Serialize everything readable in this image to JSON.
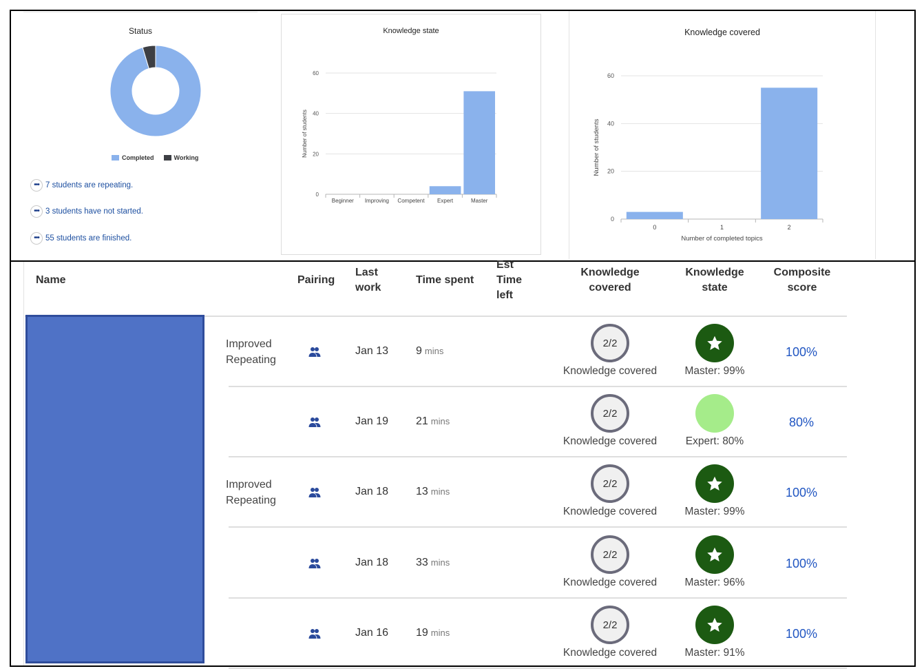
{
  "status": {
    "title": "Status",
    "chart_data": {
      "type": "pie",
      "title": "Status",
      "labels": [
        "Completed",
        "Working"
      ],
      "values": [
        62,
        3
      ],
      "colors": [
        "#8ab2ec",
        "#3d3f44"
      ],
      "legend_position": "bottom"
    },
    "legend": [
      {
        "label": "Completed",
        "color": "#8ab2ec"
      },
      {
        "label": "Working",
        "color": "#3d3f44"
      }
    ],
    "lines": [
      {
        "button": "•••",
        "text": "7 students are repeating."
      },
      {
        "button": "•••",
        "text": "3 students have not started."
      },
      {
        "button": "•••",
        "text": "55 students are finished."
      }
    ]
  },
  "knowledge_state_chart": {
    "chart_data": {
      "type": "bar",
      "title": "Knowledge state",
      "xlabel": "",
      "ylabel": "Number of students",
      "categories": [
        "Beginner",
        "Improving",
        "Competent",
        "Expert",
        "Master"
      ],
      "values": [
        0,
        0,
        0,
        4,
        51
      ],
      "ylim": [
        0,
        60
      ],
      "yticks": [
        "0",
        "20",
        "40",
        "60"
      ],
      "bar_color": "#8ab2ec",
      "grid": true
    }
  },
  "knowledge_covered_chart": {
    "chart_data": {
      "type": "bar",
      "title": "Knowledge covered",
      "xlabel": "Number of completed topics",
      "ylabel": "Number of students",
      "categories": [
        "0",
        "1",
        "2"
      ],
      "values": [
        3,
        0,
        55
      ],
      "ylim": [
        0,
        60
      ],
      "yticks": [
        "0",
        "20",
        "40",
        "60"
      ],
      "bar_color": "#8ab2ec",
      "grid": true
    }
  },
  "table": {
    "headers": {
      "name": "Name",
      "pairing": "Pairing",
      "last_work": [
        "Last",
        "work"
      ],
      "time_spent": "Time spent",
      "est_time_left": [
        "Est",
        "Time",
        "left"
      ],
      "knowledge_covered": [
        "Knowledge",
        "covered"
      ],
      "knowledge_state": [
        "Knowledge",
        "state"
      ],
      "composite_score": [
        "Composite",
        "score"
      ]
    },
    "rows": [
      {
        "notes": [
          "Improved",
          "Repeating"
        ],
        "pairing_icon": "pairing-icon",
        "last_work": "Jan 13",
        "time_value": "9",
        "time_unit": "mins",
        "kc_value": "2/2",
        "kc_label": "Knowledge covered",
        "ks_level": "master",
        "ks_icon": "star-icon",
        "ks_label": "Master: 99%",
        "score": "100%"
      },
      {
        "notes": [],
        "pairing_icon": "pairing-icon",
        "last_work": "Jan 19",
        "time_value": "21",
        "time_unit": "mins",
        "kc_value": "2/2",
        "kc_label": "Knowledge covered",
        "ks_level": "expert",
        "ks_icon": "",
        "ks_label": "Expert: 80%",
        "score": "80%"
      },
      {
        "notes": [
          "Improved",
          "Repeating"
        ],
        "pairing_icon": "pairing-icon",
        "last_work": "Jan 18",
        "time_value": "13",
        "time_unit": "mins",
        "kc_value": "2/2",
        "kc_label": "Knowledge covered",
        "ks_level": "master",
        "ks_icon": "star-icon",
        "ks_label": "Master: 99%",
        "score": "100%"
      },
      {
        "notes": [],
        "pairing_icon": "pairing-icon",
        "last_work": "Jan 18",
        "time_value": "33",
        "time_unit": "mins",
        "kc_value": "2/2",
        "kc_label": "Knowledge covered",
        "ks_level": "master",
        "ks_icon": "star-icon",
        "ks_label": "Master: 96%",
        "score": "100%"
      },
      {
        "notes": [],
        "pairing_icon": "pairing-icon",
        "last_work": "Jan 16",
        "time_value": "19",
        "time_unit": "mins",
        "kc_value": "2/2",
        "kc_label": "Knowledge covered",
        "ks_level": "master",
        "ks_icon": "star-icon",
        "ks_label": "Master: 91%",
        "score": "100%"
      }
    ]
  }
}
